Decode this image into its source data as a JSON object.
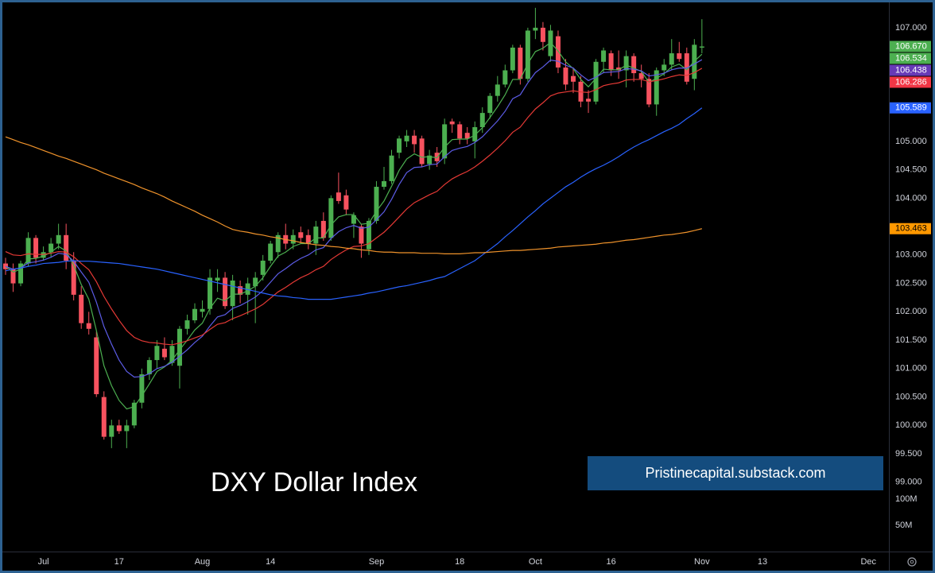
{
  "chart_data": {
    "type": "candlestick",
    "title": "DXY Dollar Index",
    "watermark": "Pristinecapital.substack.com",
    "categories": [
      null,
      null,
      null,
      null,
      null,
      "Jul",
      null,
      null,
      null,
      null,
      null,
      null,
      null,
      null,
      null,
      "17",
      null,
      null,
      null,
      null,
      null,
      null,
      null,
      null,
      null,
      null,
      "Aug",
      null,
      null,
      null,
      null,
      null,
      null,
      null,
      null,
      "14",
      null,
      null,
      null,
      null,
      null,
      null,
      null,
      null,
      null,
      null,
      null,
      null,
      null,
      "Sep",
      null,
      null,
      null,
      null,
      null,
      null,
      null,
      null,
      null,
      null,
      "18",
      null,
      null,
      null,
      null,
      null,
      null,
      null,
      null,
      null,
      "Oct",
      null,
      null,
      null,
      null,
      null,
      null,
      null,
      null,
      null,
      "16",
      null,
      null,
      null,
      null,
      null,
      null,
      null,
      null,
      null,
      null,
      null,
      "Nov",
      null,
      null,
      null,
      null,
      null,
      null,
      null,
      "13",
      null,
      null,
      null,
      null,
      null,
      null,
      null,
      null,
      null,
      null,
      null,
      null,
      null,
      "Dec"
    ],
    "open": [
      102.85,
      102.75,
      102.5,
      102.85,
      103.3,
      102.95,
      103.05,
      103.2,
      103.35,
      102.9,
      102.3,
      101.8,
      101.55,
      100.5,
      99.8,
      100.0,
      99.9,
      100.0,
      100.4,
      100.9,
      101.15,
      101.35,
      101.1,
      101.05,
      101.7,
      101.85,
      102.0,
      102.05,
      102.55,
      102.6,
      102.1,
      102.45,
      102.3,
      102.45,
      102.65,
      102.9,
      103.05,
      103.35,
      103.2,
      103.4,
      103.35,
      103.2,
      103.6,
      103.3,
      104.1,
      104.05,
      103.55,
      103.5,
      103.1,
      103.6,
      104.2,
      104.3,
      104.8,
      105.0,
      105.1,
      105.05,
      104.6,
      104.8,
      104.7,
      105.35,
      105.3,
      105.15,
      105.0,
      105.25,
      105.5,
      105.8,
      106.0,
      106.25,
      106.65,
      106.1,
      106.95,
      107.0,
      106.5,
      106.85,
      106.3,
      106.15,
      106.05,
      105.75,
      105.7,
      106.4,
      106.55,
      106.3,
      106.25,
      106.5,
      106.2,
      106.1,
      105.65,
      106.25,
      106.35,
      106.55,
      106.55,
      106.1,
      106.65,
      null,
      null,
      null,
      null,
      null,
      null,
      null,
      null,
      null,
      null,
      null,
      null,
      null,
      null,
      null,
      null,
      null,
      null,
      null,
      null,
      null,
      null
    ],
    "high": [
      102.95,
      102.85,
      102.9,
      103.4,
      103.35,
      103.15,
      103.3,
      103.55,
      103.55,
      103.05,
      102.45,
      102.0,
      101.65,
      100.6,
      100.1,
      100.1,
      100.1,
      100.45,
      101.0,
      101.2,
      101.5,
      101.55,
      101.5,
      101.75,
      101.95,
      102.15,
      102.2,
      102.75,
      102.75,
      102.7,
      102.65,
      102.55,
      102.6,
      102.7,
      103.0,
      103.25,
      103.4,
      103.55,
      103.45,
      103.5,
      103.45,
      103.6,
      103.75,
      104.05,
      104.45,
      104.15,
      103.75,
      103.55,
      103.65,
      104.3,
      104.55,
      104.85,
      105.1,
      105.2,
      105.2,
      105.1,
      104.85,
      104.9,
      105.4,
      105.4,
      105.35,
      105.25,
      105.35,
      105.6,
      105.85,
      106.15,
      106.35,
      106.7,
      106.7,
      107.0,
      107.35,
      107.1,
      107.05,
      106.95,
      106.45,
      106.3,
      106.15,
      105.9,
      106.45,
      106.65,
      106.6,
      106.6,
      106.6,
      106.55,
      106.35,
      106.2,
      106.3,
      106.45,
      106.8,
      106.75,
      106.65,
      106.8,
      107.15,
      null,
      null,
      null,
      null,
      null,
      null,
      null,
      null,
      null,
      null,
      null,
      null,
      null,
      null,
      null,
      null,
      null,
      null,
      null,
      null,
      null,
      null
    ],
    "low": [
      102.65,
      102.35,
      102.45,
      102.8,
      102.85,
      102.9,
      102.95,
      103.1,
      102.75,
      102.2,
      101.7,
      101.6,
      100.5,
      99.75,
      99.6,
      99.85,
      99.6,
      99.95,
      100.3,
      100.8,
      101.0,
      101.15,
      101.05,
      100.65,
      101.6,
      101.8,
      101.9,
      101.95,
      102.35,
      102.05,
      101.85,
      102.15,
      101.95,
      101.8,
      102.55,
      102.85,
      102.95,
      103.1,
      103.1,
      103.2,
      103.1,
      103.0,
      103.25,
      103.25,
      103.9,
      103.7,
      103.3,
      102.95,
      103.0,
      103.55,
      104.15,
      104.25,
      104.7,
      104.9,
      104.8,
      104.55,
      104.5,
      104.55,
      104.6,
      105.15,
      104.95,
      104.95,
      104.7,
      105.15,
      105.4,
      105.7,
      105.95,
      106.2,
      106.0,
      106.05,
      106.8,
      106.6,
      106.4,
      106.2,
      105.9,
      105.85,
      105.6,
      105.5,
      105.65,
      106.2,
      106.15,
      106.1,
      105.95,
      106.05,
      105.95,
      105.6,
      105.45,
      106.15,
      106.25,
      106.4,
      106.0,
      105.9,
      106.55,
      null,
      null,
      null,
      null,
      null,
      null,
      null,
      null,
      null,
      null,
      null,
      null,
      null,
      null,
      null,
      null,
      null,
      null,
      null,
      null,
      null,
      null
    ],
    "close": [
      102.75,
      102.5,
      102.85,
      103.3,
      102.95,
      103.05,
      103.2,
      103.35,
      102.9,
      102.3,
      101.8,
      101.7,
      100.55,
      99.8,
      100.0,
      99.9,
      100.0,
      100.4,
      100.9,
      101.15,
      101.4,
      101.2,
      101.4,
      101.7,
      101.85,
      102.05,
      102.05,
      102.6,
      102.6,
      102.1,
      102.55,
      102.3,
      102.5,
      102.6,
      102.9,
      103.2,
      103.35,
      103.2,
      103.35,
      103.3,
      103.2,
      103.5,
      103.3,
      104.0,
      103.95,
      103.8,
      103.7,
      103.2,
      103.6,
      104.2,
      104.3,
      104.75,
      105.05,
      105.1,
      104.95,
      104.6,
      104.75,
      104.65,
      105.3,
      105.3,
      105.05,
      105.05,
      105.25,
      105.5,
      105.8,
      106.0,
      106.25,
      106.65,
      106.1,
      106.95,
      107.0,
      106.75,
      106.95,
      106.3,
      106.0,
      106.05,
      105.7,
      105.7,
      106.4,
      106.6,
      106.25,
      106.25,
      106.5,
      106.2,
      106.1,
      105.65,
      106.25,
      106.35,
      106.55,
      106.45,
      106.05,
      106.7,
      106.67,
      null,
      null,
      null,
      null,
      null,
      null,
      null,
      null,
      null,
      null,
      null,
      null,
      null,
      null,
      null,
      null,
      null,
      null,
      null,
      null,
      null,
      null
    ],
    "last_label": "106.670",
    "up_color": "#4caf50",
    "down_color": "#f7525f",
    "series": [
      {
        "type": "line",
        "color": "#4caf50",
        "last_label": "106.534",
        "values": [
          102.8,
          102.7,
          102.75,
          102.93,
          102.94,
          102.98,
          103.05,
          103.15,
          103.07,
          102.82,
          102.48,
          102.22,
          101.67,
          101.05,
          100.7,
          100.44,
          100.29,
          100.33,
          100.52,
          100.73,
          100.95,
          101.03,
          101.15,
          101.33,
          101.5,
          101.68,
          101.8,
          102.06,
          102.24,
          102.19,
          102.31,
          102.31,
          102.37,
          102.45,
          102.6,
          102.8,
          102.98,
          103.05,
          103.15,
          103.2,
          103.2,
          103.3,
          103.3,
          103.53,
          103.67,
          103.71,
          103.71,
          103.54,
          103.56,
          103.77,
          103.95,
          104.21,
          104.49,
          104.69,
          104.78,
          104.72,
          104.73,
          104.71,
          104.9,
          105.03,
          105.04,
          105.04,
          105.11,
          105.24,
          105.42,
          105.61,
          105.82,
          106.09,
          106.09,
          106.37,
          106.58,
          106.64,
          106.74,
          106.59,
          106.4,
          106.28,
          106.09,
          105.96,
          106.11,
          106.27,
          106.26,
          106.26,
          106.34,
          106.29,
          106.23,
          106.04,
          106.11,
          106.19,
          106.31,
          106.36,
          106.26,
          106.41,
          106.534,
          null,
          null,
          null,
          null,
          null,
          null,
          null,
          null,
          null,
          null,
          null,
          null,
          null,
          null,
          null,
          null,
          null,
          null,
          null,
          null,
          null,
          null
        ]
      },
      {
        "type": "line",
        "color": "#5c5ce6",
        "last_label": "106.438",
        "badge_color": "#673ab7",
        "values": [
          102.8,
          102.75,
          102.77,
          102.86,
          102.88,
          102.91,
          102.96,
          103.03,
          103.01,
          102.89,
          102.7,
          102.52,
          102.17,
          101.74,
          101.43,
          101.15,
          100.95,
          100.85,
          100.86,
          100.91,
          101.0,
          101.04,
          101.11,
          101.22,
          101.33,
          101.46,
          101.57,
          101.75,
          101.91,
          101.95,
          102.06,
          102.11,
          102.18,
          102.26,
          102.37,
          102.52,
          102.67,
          102.76,
          102.86,
          102.94,
          103.0,
          103.09,
          103.13,
          103.29,
          103.41,
          103.48,
          103.52,
          103.47,
          103.49,
          103.62,
          103.76,
          103.98,
          104.24,
          104.45,
          104.54,
          104.55,
          104.59,
          104.6,
          104.73,
          104.84,
          104.88,
          104.91,
          104.98,
          105.08,
          105.22,
          105.36,
          105.53,
          105.75,
          105.82,
          106.03,
          106.21,
          106.31,
          106.43,
          106.41,
          106.34,
          106.29,
          106.17,
          106.07,
          106.13,
          106.21,
          106.22,
          106.23,
          106.28,
          106.27,
          106.24,
          106.15,
          106.17,
          106.2,
          106.26,
          106.29,
          106.29,
          106.36,
          106.438,
          null,
          null,
          null,
          null,
          null,
          null,
          null,
          null,
          null,
          null,
          null,
          null,
          null,
          null,
          null,
          null,
          null,
          null,
          null,
          null,
          null,
          null
        ]
      },
      {
        "type": "line",
        "color": "#e53935",
        "last_label": "106.286",
        "badge_color": "#f23645",
        "values": [
          103.06,
          103.0,
          102.99,
          103.02,
          103.01,
          103.01,
          103.03,
          103.06,
          103.05,
          102.97,
          102.85,
          102.74,
          102.53,
          102.27,
          102.05,
          101.85,
          101.67,
          101.55,
          101.49,
          101.46,
          101.45,
          101.43,
          101.42,
          101.45,
          101.49,
          101.54,
          101.59,
          101.69,
          101.78,
          101.81,
          101.88,
          101.93,
          101.99,
          102.05,
          102.13,
          102.24,
          102.35,
          102.43,
          102.52,
          102.6,
          102.66,
          102.74,
          102.8,
          102.92,
          103.01,
          103.09,
          103.15,
          103.16,
          103.2,
          103.3,
          103.4,
          103.53,
          103.67,
          103.81,
          103.92,
          103.99,
          104.06,
          104.12,
          104.24,
          104.34,
          104.41,
          104.47,
          104.55,
          104.65,
          104.76,
          104.88,
          105.01,
          105.16,
          105.25,
          105.42,
          105.57,
          105.68,
          105.8,
          105.85,
          105.87,
          105.89,
          105.87,
          105.86,
          105.91,
          105.98,
          106.01,
          106.03,
          106.08,
          106.09,
          106.09,
          106.05,
          106.07,
          106.1,
          106.14,
          106.17,
          106.16,
          106.21,
          106.286,
          null,
          null,
          null,
          null,
          null,
          null,
          null,
          null,
          null,
          null,
          null,
          null,
          null,
          null,
          null,
          null,
          null,
          null,
          null,
          null,
          null,
          null
        ]
      },
      {
        "type": "line",
        "color": "#2962ff",
        "last_label": "105.589",
        "values": [
          102.72,
          102.75,
          102.77,
          102.8,
          102.82,
          102.85,
          102.86,
          102.87,
          102.89,
          102.9,
          102.89,
          102.89,
          102.88,
          102.87,
          102.86,
          102.85,
          102.83,
          102.81,
          102.79,
          102.77,
          102.75,
          102.72,
          102.69,
          102.66,
          102.63,
          102.6,
          102.57,
          102.54,
          102.51,
          102.48,
          102.45,
          102.42,
          102.39,
          102.36,
          102.33,
          102.3,
          102.28,
          102.27,
          102.25,
          102.24,
          102.22,
          102.22,
          102.22,
          102.22,
          102.24,
          102.26,
          102.28,
          102.3,
          102.33,
          102.35,
          102.38,
          102.41,
          102.44,
          102.46,
          102.49,
          102.52,
          102.55,
          102.59,
          102.62,
          102.69,
          102.76,
          102.83,
          102.9,
          103.0,
          103.1,
          103.2,
          103.32,
          103.43,
          103.55,
          103.67,
          103.78,
          103.9,
          104.0,
          104.1,
          104.2,
          104.28,
          104.37,
          104.45,
          104.52,
          104.58,
          104.65,
          104.73,
          104.82,
          104.9,
          104.97,
          105.03,
          105.1,
          105.17,
          105.23,
          105.3,
          105.4,
          105.49,
          105.589,
          null,
          null,
          null,
          null,
          null,
          null,
          null,
          null,
          null,
          null,
          null,
          null,
          null,
          null,
          null,
          null,
          null,
          null,
          null,
          null,
          null,
          null
        ]
      },
      {
        "type": "line",
        "color": "#f0932b",
        "last_label": "103.463",
        "badge_color": "#ff9800",
        "values": [
          105.08,
          105.03,
          104.98,
          104.94,
          104.89,
          104.84,
          104.79,
          104.74,
          104.7,
          104.65,
          104.6,
          104.55,
          104.5,
          104.44,
          104.39,
          104.34,
          104.29,
          104.24,
          104.18,
          104.13,
          104.08,
          104.02,
          103.95,
          103.89,
          103.83,
          103.77,
          103.7,
          103.64,
          103.58,
          103.51,
          103.45,
          103.42,
          103.4,
          103.37,
          103.35,
          103.32,
          103.3,
          103.27,
          103.25,
          103.22,
          103.2,
          103.18,
          103.17,
          103.15,
          103.14,
          103.12,
          103.11,
          103.09,
          103.08,
          103.06,
          103.05,
          103.05,
          103.04,
          103.04,
          103.04,
          103.03,
          103.03,
          103.03,
          103.02,
          103.02,
          103.02,
          103.03,
          103.04,
          103.04,
          103.05,
          103.06,
          103.07,
          103.08,
          103.08,
          103.09,
          103.1,
          103.11,
          103.12,
          103.14,
          103.15,
          103.16,
          103.17,
          103.18,
          103.19,
          103.21,
          103.22,
          103.24,
          103.26,
          103.27,
          103.29,
          103.31,
          103.33,
          103.35,
          103.36,
          103.38,
          103.4,
          103.43,
          103.463,
          null,
          null,
          null,
          null,
          null,
          null,
          null,
          null,
          null,
          null,
          null,
          null,
          null,
          null,
          null,
          null,
          null,
          null,
          null,
          null,
          null,
          null
        ]
      }
    ],
    "ylim": [
      97.78,
      107.46
    ],
    "yticks": [
      {
        "value": 99,
        "label": "99.000"
      },
      {
        "value": 99.5,
        "label": "99.500"
      },
      {
        "value": 100,
        "label": "100.000"
      },
      {
        "value": 100.5,
        "label": "100.500"
      },
      {
        "value": 101,
        "label": "101.000"
      },
      {
        "value": 101.5,
        "label": "101.500"
      },
      {
        "value": 102,
        "label": "102.000"
      },
      {
        "value": 102.5,
        "label": "102.500"
      },
      {
        "value": 103,
        "label": "103.000"
      },
      {
        "value": 104,
        "label": "104.000"
      },
      {
        "value": 104.5,
        "label": "104.500"
      },
      {
        "value": 105,
        "label": "105.000"
      },
      {
        "value": 107,
        "label": "107.000"
      }
    ],
    "volume_ylim": [
      0,
      200000000
    ],
    "volume_ticks": [
      {
        "value": 100000000,
        "label": "100M"
      },
      {
        "value": 50000000,
        "label": "50M"
      }
    ],
    "grid": false
  }
}
